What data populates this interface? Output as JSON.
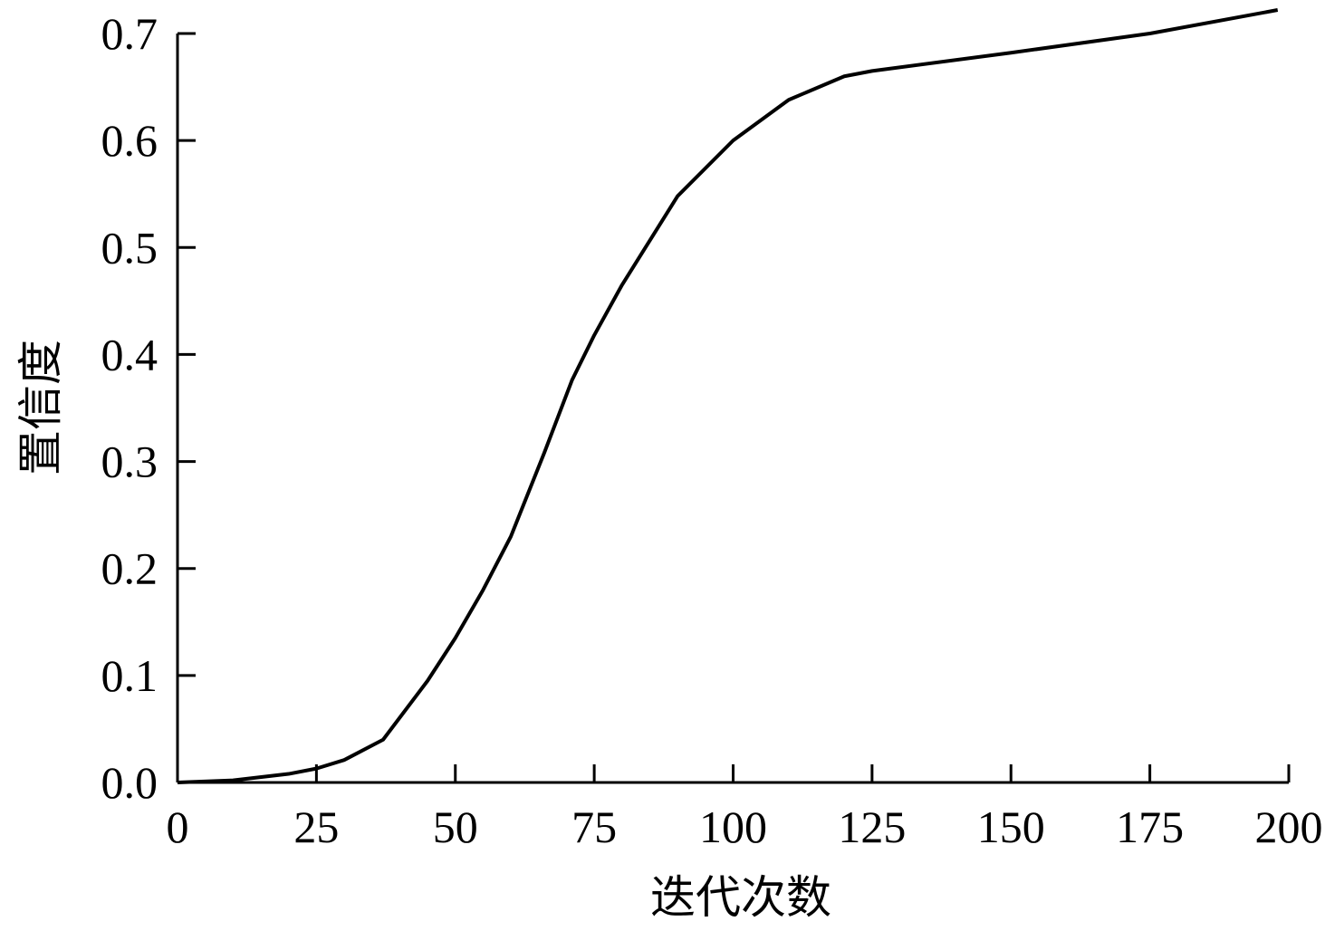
{
  "chart_data": {
    "type": "line",
    "xlabel": "迭代次数",
    "ylabel": "置信度",
    "x": [
      0,
      10,
      20,
      25,
      30,
      37,
      45,
      50,
      55,
      60,
      66,
      71,
      75,
      80,
      90,
      100,
      110,
      120,
      125,
      150,
      175,
      198
    ],
    "values": [
      0,
      0.002,
      0.008,
      0.013,
      0.021,
      0.04,
      0.095,
      0.135,
      0.18,
      0.23,
      0.308,
      0.376,
      0.418,
      0.465,
      0.548,
      0.6,
      0.638,
      0.66,
      0.665,
      0.682,
      0.7,
      0.722
    ],
    "color": "#000000",
    "xlim": [
      0,
      200
    ],
    "ylim": [
      0,
      0.7
    ],
    "xticks": [
      0,
      25,
      50,
      75,
      100,
      125,
      150,
      175,
      200
    ],
    "yticks": [
      {
        "value": 0,
        "label": "0.0"
      },
      0.1,
      0.2,
      0.3,
      0.4,
      0.5,
      0.6,
      0.7
    ],
    "grid": false
  }
}
